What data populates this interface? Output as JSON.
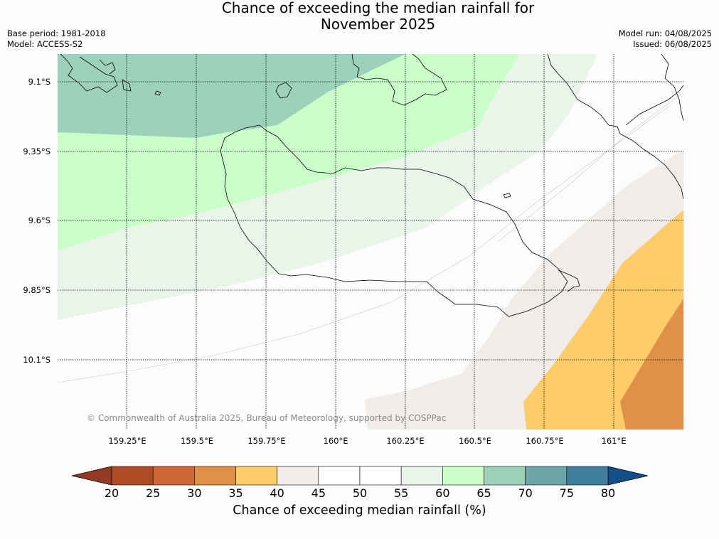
{
  "title": {
    "line1": "Chance of exceeding the median rainfall for",
    "line2": "November 2025"
  },
  "meta_left": {
    "base_period": "Base period: 1981-2018",
    "model": "Model: ACCESS-S2"
  },
  "meta_right": {
    "model_run": "Model run: 04/08/2025",
    "issued": "Issued: 06/08/2025"
  },
  "map": {
    "lat_labels": [
      "9.1°S",
      "9.35°S",
      "9.6°S",
      "9.85°S",
      "10.1°S"
    ],
    "lon_labels": [
      "159.25°E",
      "159.5°E",
      "159.75°E",
      "160°E",
      "160.25°E",
      "160.5°E",
      "160.75°E",
      "161°E"
    ],
    "credit": "© Commonwealth of Australia 2025, Bureau of Meteorology, supported by COSPPac"
  },
  "colorbar": {
    "ticks": [
      "20",
      "25",
      "30",
      "35",
      "40",
      "45",
      "50",
      "55",
      "60",
      "65",
      "70",
      "75",
      "80"
    ],
    "colors": [
      "#b04c25",
      "#cf6736",
      "#e09149",
      "#ffcc6a",
      "#f0ece8",
      "#ffffff",
      "#ffffff",
      "#eaf5ea",
      "#caffca",
      "#9ed1bb",
      "#6da5a8",
      "#417d9c"
    ],
    "below_color": "#953a22",
    "above_color": "#154f87",
    "label": "Chance of exceeding median rainfall (%)"
  }
}
